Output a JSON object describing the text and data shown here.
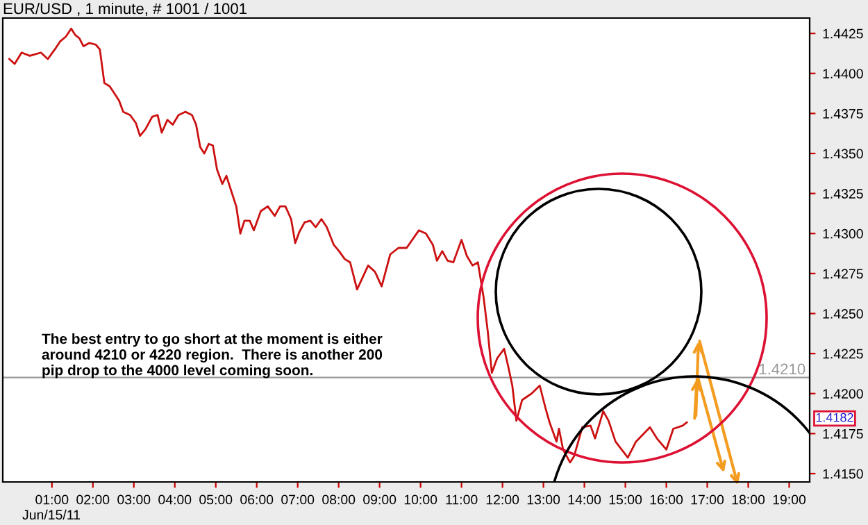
{
  "chart_data": {
    "type": "line",
    "title": "EUR/USD , 1 minute, # 1001 / 1001",
    "x": [
      -0.04,
      0.09,
      0.26,
      0.46,
      0.73,
      0.9,
      1.07,
      1.2,
      1.34,
      1.47,
      1.57,
      1.67,
      1.77,
      1.91,
      2.07,
      2.17,
      2.28,
      2.41,
      2.54,
      2.64,
      2.74,
      2.91,
      3.05,
      3.15,
      3.28,
      3.45,
      3.58,
      3.68,
      3.82,
      3.95,
      4.09,
      4.26,
      4.42,
      4.52,
      4.62,
      4.72,
      4.83,
      4.93,
      5.03,
      5.16,
      5.26,
      5.36,
      5.5,
      5.6,
      5.7,
      5.83,
      5.93,
      6.1,
      6.27,
      6.44,
      6.57,
      6.7,
      6.84,
      6.94,
      7.04,
      7.17,
      7.31,
      7.44,
      7.58,
      7.71,
      7.88,
      8.01,
      8.15,
      8.28,
      8.45,
      8.72,
      8.89,
      9.05,
      9.26,
      9.46,
      9.66,
      9.96,
      10.13,
      10.3,
      10.4,
      10.53,
      10.66,
      10.8,
      10.9,
      11.0,
      11.13,
      11.27,
      11.4,
      11.54,
      11.64,
      11.74,
      11.87,
      12.04,
      12.14,
      12.24,
      12.34,
      12.48,
      12.71,
      12.91,
      13.05,
      13.15,
      13.32,
      13.38,
      13.48,
      13.65,
      13.75,
      13.95,
      14.15,
      14.26,
      14.46,
      14.59,
      14.76,
      15.06,
      15.26,
      15.6,
      15.77,
      16.0,
      16.17,
      16.4,
      16.5
    ],
    "series": [
      {
        "color": "#cc1010",
        "values": [
          1.4409,
          1.4406,
          1.4413,
          1.4411,
          1.4413,
          1.4409,
          1.4415,
          1.442,
          1.4423,
          1.4428,
          1.4424,
          1.4422,
          1.4417,
          1.4419,
          1.4418,
          1.4415,
          1.4394,
          1.4392,
          1.4387,
          1.4383,
          1.4376,
          1.4374,
          1.4369,
          1.4361,
          1.4365,
          1.4373,
          1.4374,
          1.4363,
          1.4371,
          1.4368,
          1.4374,
          1.4376,
          1.4374,
          1.4368,
          1.4354,
          1.435,
          1.4356,
          1.4355,
          1.434,
          1.4331,
          1.4336,
          1.4328,
          1.4317,
          1.43,
          1.4308,
          1.4308,
          1.4302,
          1.4314,
          1.4317,
          1.4311,
          1.4317,
          1.4317,
          1.4309,
          1.4294,
          1.4301,
          1.4307,
          1.4308,
          1.4304,
          1.4309,
          1.4304,
          1.4293,
          1.4289,
          1.4284,
          1.4282,
          1.4265,
          1.428,
          1.4276,
          1.4267,
          1.4287,
          1.4291,
          1.4291,
          1.4302,
          1.43,
          1.4293,
          1.4283,
          1.4289,
          1.4283,
          1.4282,
          1.4289,
          1.4296,
          1.4286,
          1.428,
          1.4282,
          1.426,
          1.4239,
          1.4213,
          1.4222,
          1.4228,
          1.4217,
          1.4205,
          1.4183,
          1.4196,
          1.42,
          1.4205,
          1.4191,
          1.4182,
          1.417,
          1.4178,
          1.4165,
          1.4157,
          1.4161,
          1.4179,
          1.418,
          1.4172,
          1.4189,
          1.4183,
          1.417,
          1.416,
          1.417,
          1.4179,
          1.4172,
          1.4165,
          1.4178,
          1.418,
          1.4182
        ]
      }
    ],
    "xlim": [
      -0.2,
      19.5
    ],
    "ylim": [
      1.41448,
      1.44346
    ],
    "xticks": [
      {
        "value": 1,
        "label": "01:00"
      },
      {
        "value": 2,
        "label": "02:00"
      },
      {
        "value": 3,
        "label": "03:00"
      },
      {
        "value": 4,
        "label": "04:00"
      },
      {
        "value": 5,
        "label": "05:00"
      },
      {
        "value": 6,
        "label": "06:00"
      },
      {
        "value": 7,
        "label": "07:00"
      },
      {
        "value": 8,
        "label": "08:00"
      },
      {
        "value": 9,
        "label": "09:00"
      },
      {
        "value": 10,
        "label": "10:00"
      },
      {
        "value": 11,
        "label": "11:00"
      },
      {
        "value": 12,
        "label": "12:00"
      },
      {
        "value": 13,
        "label": "13:00"
      },
      {
        "value": 14,
        "label": "14:00"
      },
      {
        "value": 15,
        "label": "15:00"
      },
      {
        "value": 16,
        "label": "16:00"
      },
      {
        "value": 17,
        "label": "17:00"
      },
      {
        "value": 18,
        "label": "18:00"
      },
      {
        "value": 19,
        "label": "19:00"
      }
    ],
    "yticks": [
      1.4425,
      {
        "value": 1.44,
        "label": "1.4400"
      },
      1.4375,
      {
        "value": 1.435,
        "label": "1.4350"
      },
      1.4325,
      {
        "value": 1.43,
        "label": "1.4300"
      },
      1.4275,
      {
        "value": 1.425,
        "label": "1.4250"
      },
      1.4225,
      {
        "value": 1.42,
        "label": "1.4200"
      },
      1.4175,
      {
        "value": 1.415,
        "label": "1.4150"
      }
    ],
    "ref_lines": [
      {
        "axis": "y",
        "value": 1.421,
        "label": "1.4210",
        "color": "#999999"
      }
    ],
    "annotations": [
      "The best entry to go short at the moment is either\naround 4210 or 4220 region.  There is another 200\npip drop to the 4000 level coming soon.",
      "Jun/15/11",
      "1.4182"
    ],
    "grid": false,
    "legend": false
  }
}
